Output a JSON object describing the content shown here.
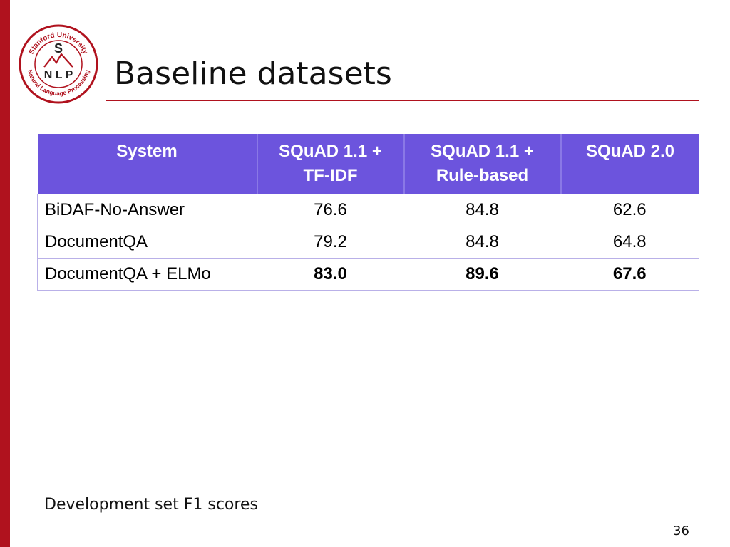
{
  "slide": {
    "title": "Baseline datasets",
    "caption": "Development set F1 scores",
    "page_number": "36"
  },
  "logo": {
    "top_text": "Stanford University",
    "bottom_text": "Natural Language Processing",
    "letter_s": "S",
    "letters_nlp": "N L P"
  },
  "colors": {
    "accent_red": "#b0121e",
    "table_header": "#6c54dd"
  },
  "table": {
    "headers": [
      "System",
      "SQuAD 1.1 + TF-IDF",
      "SQuAD 1.1 + Rule-based",
      "SQuAD 2.0"
    ],
    "header_lines": [
      [
        "System"
      ],
      [
        "SQuAD 1.1 +",
        "TF-IDF"
      ],
      [
        "SQuAD 1.1 +",
        "Rule-based"
      ],
      [
        "SQuAD 2.0"
      ]
    ],
    "rows": [
      {
        "system": "BiDAF-No-Answer",
        "values": [
          "76.6",
          "84.8",
          "62.6"
        ]
      },
      {
        "system": "DocumentQA",
        "values": [
          "79.2",
          "84.8",
          "64.8"
        ]
      },
      {
        "system": "DocumentQA + ELMo",
        "values": [
          "83.0",
          "89.6",
          "67.6"
        ]
      }
    ]
  }
}
